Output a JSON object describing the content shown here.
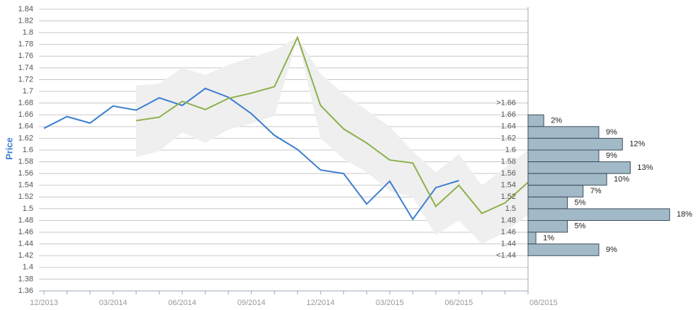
{
  "chart_data": {
    "type": "line",
    "y_label": "Price",
    "categories": [
      "12/2013",
      null,
      null,
      "03/2014",
      null,
      null,
      "06/2014",
      null,
      null,
      "09/2014",
      null,
      null,
      "12/2014",
      null,
      null,
      "03/2015",
      null,
      null,
      "06/2015",
      null,
      null,
      "08/2015"
    ],
    "ylim": [
      1.36,
      1.84
    ],
    "yticks": [
      1.36,
      1.38,
      1.4,
      1.42,
      1.44,
      1.46,
      1.48,
      1.5,
      1.52,
      1.54,
      1.56,
      1.58,
      1.6,
      1.62,
      1.64,
      1.66,
      1.68,
      1.7,
      1.72,
      1.74,
      1.76,
      1.78,
      1.8,
      1.82,
      1.84
    ],
    "grid": true,
    "band": {
      "color": "#efefef",
      "upper": [
        null,
        null,
        null,
        null,
        1.71,
        1.713,
        1.74,
        1.728,
        1.745,
        1.758,
        1.77,
        1.792,
        1.73,
        1.696,
        1.668,
        1.64,
        1.598,
        1.562,
        1.593,
        1.54,
        1.57,
        1.6
      ],
      "lower": [
        null,
        null,
        null,
        null,
        1.588,
        1.598,
        1.63,
        1.612,
        1.635,
        1.645,
        1.658,
        1.79,
        1.62,
        1.585,
        1.562,
        1.53,
        1.52,
        1.455,
        1.48,
        1.44,
        1.46,
        1.49
      ]
    },
    "series": [
      {
        "color": "#3b7dd0",
        "values": [
          1.637,
          1.657,
          1.646,
          1.675,
          1.668,
          1.689,
          1.676,
          1.705,
          1.69,
          1.662,
          1.625,
          1.601,
          1.566,
          1.56,
          1.508,
          1.547,
          1.482,
          1.536,
          1.548,
          null,
          null,
          null
        ]
      },
      {
        "color": "#8cb04a",
        "values": [
          null,
          null,
          null,
          null,
          1.65,
          1.656,
          1.683,
          1.669,
          1.688,
          1.697,
          1.708,
          1.792,
          1.676,
          1.636,
          1.612,
          1.583,
          1.578,
          1.504,
          1.54,
          1.492,
          1.51,
          1.545
        ]
      }
    ],
    "histogram": {
      "color": "#a2b9c8",
      "border": "#3d4d58",
      "bins": [
        1.66,
        1.64,
        1.62,
        1.6,
        1.58,
        1.56,
        1.54,
        1.52,
        1.5,
        1.48,
        1.46,
        1.44,
        1.42
      ],
      "values": [
        2,
        9,
        12,
        9,
        13,
        10,
        7,
        5,
        18,
        5,
        1,
        9
      ],
      "value_labels": [
        "2%",
        "9%",
        "12%",
        "9%",
        "13%",
        "10%",
        "7%",
        "5%",
        "18%",
        "5%",
        "1%",
        "9%"
      ],
      "bin_labels": [
        {
          "value": 1.68,
          "label": ">1.66"
        },
        1.66,
        1.64,
        1.62,
        1.6,
        1.58,
        1.56,
        1.54,
        1.52,
        1.5,
        1.48,
        1.46,
        1.44,
        {
          "value": 1.42,
          "label": "<1.44"
        }
      ]
    }
  }
}
